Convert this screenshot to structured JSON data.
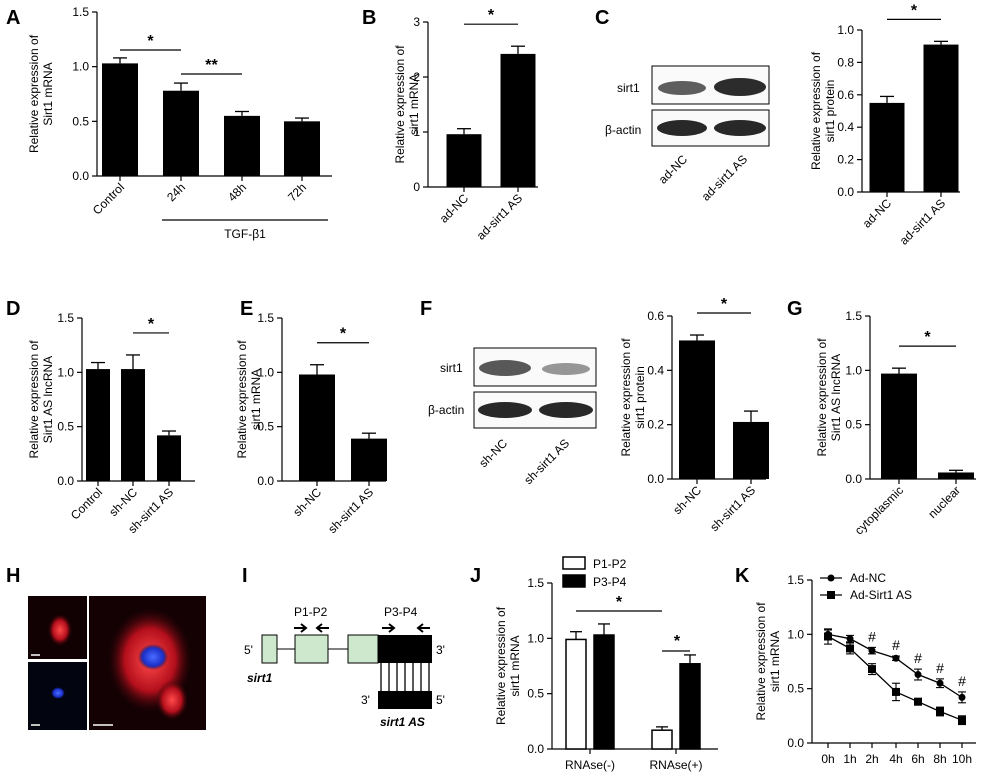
{
  "panels": {
    "A": "A",
    "B": "B",
    "C": "C",
    "D": "D",
    "E": "E",
    "F": "F",
    "G": "G",
    "H": "H",
    "I": "I",
    "J": "J",
    "K": "K"
  },
  "blots": {
    "C": {
      "rows": [
        "sirt1",
        "β-actin"
      ],
      "lanes": [
        "ad-NC",
        "ad-sirt1 AS"
      ]
    },
    "F": {
      "rows": [
        "sirt1",
        "β-actin"
      ],
      "lanes": [
        "sh-NC",
        "sh-sirt1 AS"
      ]
    }
  },
  "diagram": {
    "p1p2": "P1-P2",
    "p3p4": "P3-P4",
    "five_prime_top": "5'",
    "three_prime_top": "3'",
    "three_prime_bottom": "3'",
    "five_prime_bottom": "5'",
    "gene": "sirt1",
    "antisense": "sirt1 AS"
  },
  "chart_data": [
    {
      "id": "A",
      "type": "bar",
      "ylabel": "Relative expression of\nSirt1 mRNA",
      "categories": [
        "Control",
        "24h",
        "48h",
        "72h"
      ],
      "values": [
        1.03,
        0.78,
        0.55,
        0.5
      ],
      "errors": [
        0.05,
        0.07,
        0.04,
        0.03
      ],
      "ylim": [
        0,
        1.5
      ],
      "yticks": [
        "0.0",
        "0.5",
        "1.0",
        "1.5"
      ],
      "group_label": "TGF-β1",
      "sig": [
        {
          "from": 0,
          "to": 1,
          "label": "*"
        },
        {
          "from": 1,
          "to": 2,
          "label": "**"
        }
      ]
    },
    {
      "id": "B",
      "type": "bar",
      "ylabel": "Relative expression of\nsirt1 mRNA",
      "categories": [
        "ad-NC",
        "ad-sirt1 AS"
      ],
      "values": [
        0.96,
        2.42
      ],
      "errors": [
        0.1,
        0.14
      ],
      "ylim": [
        0,
        3
      ],
      "yticks": [
        "0",
        "1",
        "2",
        "3"
      ],
      "sig": [
        {
          "from": 0,
          "to": 1,
          "label": "*"
        }
      ]
    },
    {
      "id": "C",
      "type": "bar",
      "ylabel": "Relative expression of\nsirt1 protein",
      "categories": [
        "ad-NC",
        "ad-sirt1 AS"
      ],
      "values": [
        0.55,
        0.91
      ],
      "errors": [
        0.04,
        0.02
      ],
      "ylim": [
        0,
        1.0
      ],
      "yticks": [
        "0.0",
        "0.2",
        "0.4",
        "0.6",
        "0.8",
        "1.0"
      ],
      "sig": [
        {
          "from": 0,
          "to": 1,
          "label": "*"
        }
      ]
    },
    {
      "id": "D",
      "type": "bar",
      "ylabel": "Relative expression of\nSirt1 AS lncRNA",
      "categories": [
        "Control",
        "sh-NC",
        "sh-sirt1 AS"
      ],
      "values": [
        1.03,
        1.03,
        0.42
      ],
      "errors": [
        0.06,
        0.13,
        0.04
      ],
      "ylim": [
        0,
        1.5
      ],
      "yticks": [
        "0.0",
        "0.5",
        "1.0",
        "1.5"
      ],
      "sig": [
        {
          "from": 1,
          "to": 2,
          "label": "*"
        }
      ]
    },
    {
      "id": "E",
      "type": "bar",
      "ylabel": "Relative expression of\nsirt1 mRNA",
      "categories": [
        "sh-NC",
        "sh-sirt1 AS"
      ],
      "values": [
        0.98,
        0.39
      ],
      "errors": [
        0.09,
        0.05
      ],
      "ylim": [
        0,
        1.5
      ],
      "yticks": [
        "0.0",
        "0.5",
        "1.0",
        "1.5"
      ],
      "sig": [
        {
          "from": 0,
          "to": 1,
          "label": "*"
        }
      ]
    },
    {
      "id": "F",
      "type": "bar",
      "ylabel": "Relative expression of\nsirt1 protein",
      "categories": [
        "sh-NC",
        "sh-sirt1 AS"
      ],
      "values": [
        0.51,
        0.21
      ],
      "errors": [
        0.02,
        0.04
      ],
      "ylim": [
        0,
        0.6
      ],
      "yticks": [
        "0.0",
        "0.2",
        "0.4",
        "0.6"
      ],
      "sig": [
        {
          "from": 0,
          "to": 1,
          "label": "*"
        }
      ]
    },
    {
      "id": "G",
      "type": "bar",
      "ylabel": "Relative expression of\nSirt1 AS lncRNA",
      "categories": [
        "cytoplasmic",
        "nuclear"
      ],
      "values": [
        0.97,
        0.06
      ],
      "errors": [
        0.05,
        0.02
      ],
      "ylim": [
        0,
        1.5
      ],
      "yticks": [
        "0.0",
        "0.5",
        "1.0",
        "1.5"
      ],
      "sig": [
        {
          "from": 0,
          "to": 1,
          "label": "*"
        }
      ]
    },
    {
      "id": "J",
      "type": "bar",
      "ylabel": "Relative expression of\nsirt1 mRNA",
      "categories": [
        "RNAse(-)",
        "RNAse(+)"
      ],
      "series": [
        {
          "name": "P1-P2",
          "values": [
            0.99,
            0.17
          ],
          "errors": [
            0.07,
            0.03
          ],
          "fill": "#ffffff"
        },
        {
          "name": "P3-P4",
          "values": [
            1.03,
            0.77
          ],
          "errors": [
            0.1,
            0.08
          ],
          "fill": "#000000"
        }
      ],
      "ylim": [
        0,
        1.5
      ],
      "yticks": [
        "0.0",
        "0.5",
        "1.0",
        "1.5"
      ],
      "legend": "top-left",
      "sig": [
        {
          "label": "*",
          "kind": "outer"
        },
        {
          "label": "*",
          "kind": "inner"
        }
      ]
    },
    {
      "id": "K",
      "type": "line",
      "ylabel": "Relative expression of\nsirt1 mRNA",
      "x": [
        "0h",
        "1h",
        "2h",
        "4h",
        "6h",
        "8h",
        "10h"
      ],
      "series": [
        {
          "name": "Ad-NC",
          "marker": "circle",
          "values": [
            1.0,
            0.96,
            0.85,
            0.78,
            0.63,
            0.55,
            0.42
          ],
          "errors": [
            0.04,
            0.03,
            0.03,
            0.02,
            0.05,
            0.04,
            0.05
          ]
        },
        {
          "name": "Ad-Sirt1 AS",
          "marker": "square",
          "values": [
            0.98,
            0.87,
            0.68,
            0.47,
            0.38,
            0.29,
            0.21
          ],
          "errors": [
            0.07,
            0.05,
            0.05,
            0.08,
            0.03,
            0.04,
            0.04
          ]
        }
      ],
      "ylim": [
        0,
        1.5
      ],
      "yticks": [
        "0.0",
        "0.5",
        "1.0",
        "1.5"
      ],
      "legend": "top-left",
      "marks": [
        "",
        "",
        "#",
        "#",
        "#",
        "#",
        "#"
      ]
    }
  ]
}
